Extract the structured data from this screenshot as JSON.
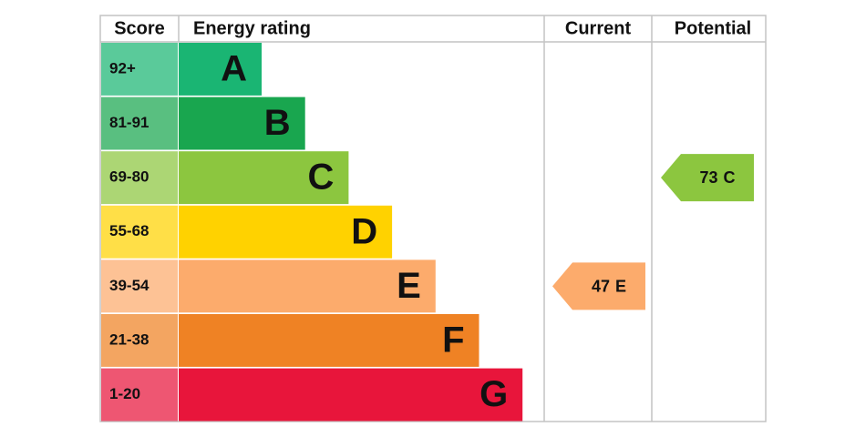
{
  "header": {
    "score": "Score",
    "rating": "Energy rating",
    "current": "Current",
    "potential": "Potential"
  },
  "bands": [
    {
      "score": "92+",
      "letter": "A",
      "color": "#1ab573"
    },
    {
      "score": "81-91",
      "letter": "B",
      "color": "#19a64f"
    },
    {
      "score": "69-80",
      "letter": "C",
      "color": "#8cc63f"
    },
    {
      "score": "55-68",
      "letter": "D",
      "color": "#ffd200"
    },
    {
      "score": "39-54",
      "letter": "E",
      "color": "#fcab6c"
    },
    {
      "score": "21-38",
      "letter": "F",
      "color": "#ef8224"
    },
    {
      "score": "1-20",
      "letter": "G",
      "color": "#e8153b"
    }
  ],
  "current": {
    "value": 47,
    "rating": "E"
  },
  "potential": {
    "value": 73,
    "rating": "C"
  }
}
